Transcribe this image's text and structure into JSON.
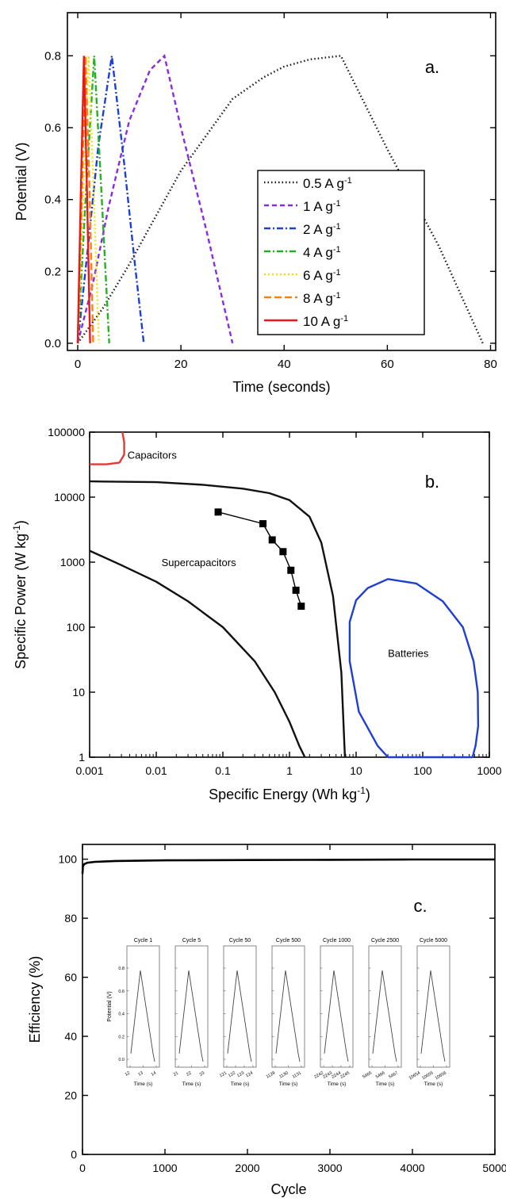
{
  "chart_data": [
    {
      "type": "line",
      "panel_label": "a.",
      "xlabel": "Time (seconds)",
      "ylabel": "Potential (V)",
      "xlim": [
        -2,
        81
      ],
      "ylim": [
        -0.02,
        0.92
      ],
      "xticks": [
        0,
        20,
        40,
        60,
        80
      ],
      "yticks": [
        0.0,
        0.2,
        0.4,
        0.6,
        0.8
      ],
      "grid": false,
      "legend_position": "right-middle",
      "series": [
        {
          "name": "0.5 A g",
          "sup": "-1",
          "color": "#1a1a1a",
          "dash": "1.5,3",
          "x": [
            0,
            5,
            10,
            20,
            30,
            36,
            40,
            45,
            51,
            60,
            70,
            78.5
          ],
          "y": [
            0.0,
            0.1,
            0.22,
            0.48,
            0.68,
            0.74,
            0.77,
            0.79,
            0.8,
            0.54,
            0.27,
            0.0
          ]
        },
        {
          "name": "1 A g",
          "sup": "-1",
          "color": "#8a2be2",
          "dash": "6,4",
          "x": [
            0,
            3,
            6,
            10,
            14,
            16.8,
            20,
            25,
            30
          ],
          "y": [
            0.0,
            0.17,
            0.38,
            0.62,
            0.76,
            0.8,
            0.6,
            0.31,
            0.0
          ]
        },
        {
          "name": "2 A g",
          "sup": "-1",
          "color": "#1c3fd6",
          "dash": "8,3,2,3",
          "x": [
            0,
            2,
            4,
            6.6,
            9,
            11,
            12.8
          ],
          "y": [
            0.0,
            0.27,
            0.55,
            0.8,
            0.5,
            0.23,
            0.0
          ]
        },
        {
          "name": "4 A g",
          "sup": "-1",
          "color": "#22b322",
          "dash": "8,3,2,3",
          "x": [
            0,
            1.6,
            3.2,
            4.6,
            6.1
          ],
          "y": [
            0.0,
            0.42,
            0.8,
            0.42,
            0.0
          ]
        },
        {
          "name": "6 A g",
          "sup": "-1",
          "color": "#f5e000",
          "dash": "2,3",
          "x": [
            0,
            1.1,
            2.1,
            3.1,
            4.1
          ],
          "y": [
            0.0,
            0.42,
            0.8,
            0.42,
            0.0
          ]
        },
        {
          "name": "8 A g",
          "sup": "-1",
          "color": "#ff7f0e",
          "dash": "9,4",
          "x": [
            0,
            0.8,
            1.5,
            2.3,
            3.0
          ],
          "y": [
            0.0,
            0.42,
            0.8,
            0.42,
            0.0
          ]
        },
        {
          "name": "10 A g",
          "sup": "-1",
          "color": "#e8191a",
          "dash": "",
          "x": [
            0,
            0.6,
            1.2,
            1.8,
            2.4
          ],
          "y": [
            0.0,
            0.42,
            0.8,
            0.42,
            0.0
          ]
        }
      ]
    },
    {
      "type": "line",
      "scale": "log-log",
      "panel_label": "b.",
      "xlabel": "Specific Energy (Wh kg",
      "xlabel_sup": "-1",
      "xlabel_end": ")",
      "ylabel": "Specific Power (W kg",
      "ylabel_sup": "-1",
      "ylabel_end": ")",
      "xlim": [
        0.001,
        1000
      ],
      "ylim": [
        1,
        100000
      ],
      "xticks": [
        0.001,
        0.01,
        0.1,
        1,
        10,
        100,
        1000
      ],
      "xticklabels": [
        "0.001",
        "0.01",
        "0.1",
        "1",
        "10",
        "100",
        "1000"
      ],
      "yticks": [
        1,
        10,
        100,
        1000,
        10000,
        100000
      ],
      "yticklabels": [
        "1",
        "10",
        "100",
        "1000",
        "10000",
        "100000"
      ],
      "grid": false,
      "region_labels": [
        {
          "text": "Capacitors",
          "x": 0.0037,
          "y": 45000
        },
        {
          "text": "Supercapacitors",
          "x": 0.012,
          "y": 1000
        },
        {
          "text": "Batteries",
          "x": 30,
          "y": 40
        }
      ],
      "regions": [
        {
          "name": "capacitors",
          "color": "#e53935",
          "x": [
            0.001,
            0.0018,
            0.0028,
            0.0033,
            0.0033,
            0.0031
          ],
          "y": [
            32000,
            32000,
            34000,
            45000,
            70000,
            100000
          ]
        },
        {
          "name": "supercapacitors-upper",
          "color": "#111111",
          "x": [
            0.001,
            0.01,
            0.05,
            0.2,
            0.5,
            1.0,
            2.0,
            3.0,
            4.5,
            6.0,
            6.8
          ],
          "y": [
            17500,
            17000,
            15500,
            13500,
            11500,
            9000,
            5000,
            2000,
            300,
            20,
            1
          ]
        },
        {
          "name": "supercapacitors-lower",
          "color": "#111111",
          "x": [
            0.001,
            0.003,
            0.01,
            0.03,
            0.1,
            0.3,
            0.6,
            1.0,
            1.4,
            1.7
          ],
          "y": [
            1500,
            900,
            500,
            250,
            100,
            30,
            10,
            3.5,
            1.5,
            1
          ]
        },
        {
          "name": "batteries",
          "color": "#1f3fd1",
          "x": [
            30,
            21,
            11,
            8,
            8,
            10,
            15,
            30,
            80,
            200,
            400,
            580,
            670,
            680,
            620,
            560,
            30
          ],
          "y": [
            1,
            1.5,
            5,
            30,
            120,
            260,
            400,
            550,
            470,
            250,
            100,
            30,
            10,
            3,
            1.5,
            1,
            1
          ]
        }
      ],
      "measured": {
        "name": "this work",
        "color": "#000000",
        "x": [
          0.085,
          0.4,
          0.55,
          0.8,
          1.05,
          1.25,
          1.5
        ],
        "y": [
          5900,
          3900,
          2200,
          1450,
          750,
          370,
          210
        ]
      }
    },
    {
      "type": "line",
      "panel_label": "c.",
      "xlabel": "Cycle",
      "ylabel": "Efficiency (%)",
      "xlim": [
        0,
        5000
      ],
      "ylim": [
        0,
        105
      ],
      "xticks": [
        0,
        1000,
        2000,
        3000,
        4000,
        5000
      ],
      "yticks": [
        0,
        20,
        40,
        60,
        80,
        100
      ],
      "grid": false,
      "series": [
        {
          "name": "efficiency",
          "color": "#000000",
          "x": [
            0,
            5,
            20,
            60,
            150,
            400,
            1000,
            2000,
            3000,
            4000,
            5000
          ],
          "y": [
            95,
            97.5,
            98.3,
            98.8,
            99.1,
            99.4,
            99.6,
            99.7,
            99.8,
            99.9,
            99.9
          ]
        }
      ],
      "insets": [
        {
          "title": "Cycle 1",
          "xticklabels": [
            "12",
            "13",
            "14"
          ]
        },
        {
          "title": "Cycle 5",
          "xticklabels": [
            "21",
            "22",
            "23"
          ]
        },
        {
          "title": "Cycle 50",
          "xticklabels": [
            "121",
            "122",
            "123",
            "124"
          ]
        },
        {
          "title": "Cycle 500",
          "xticklabels": [
            "1129",
            "1130",
            "1131"
          ]
        },
        {
          "title": "Cycle 1000",
          "xticklabels": [
            "2242",
            "2243",
            "2244",
            "2245"
          ]
        },
        {
          "title": "Cycle 2500",
          "xticklabels": [
            "5465",
            "5466",
            "5467"
          ]
        },
        {
          "title": "Cycle 5000",
          "xticklabels": [
            "10654",
            "10655",
            "10656"
          ]
        }
      ],
      "inset_ylabel": "Potential (V)",
      "inset_xlabel": "Time (s)",
      "inset_yticks": [
        "0.0",
        "0.2",
        "0.4",
        "0.6",
        "0.8"
      ]
    }
  ]
}
